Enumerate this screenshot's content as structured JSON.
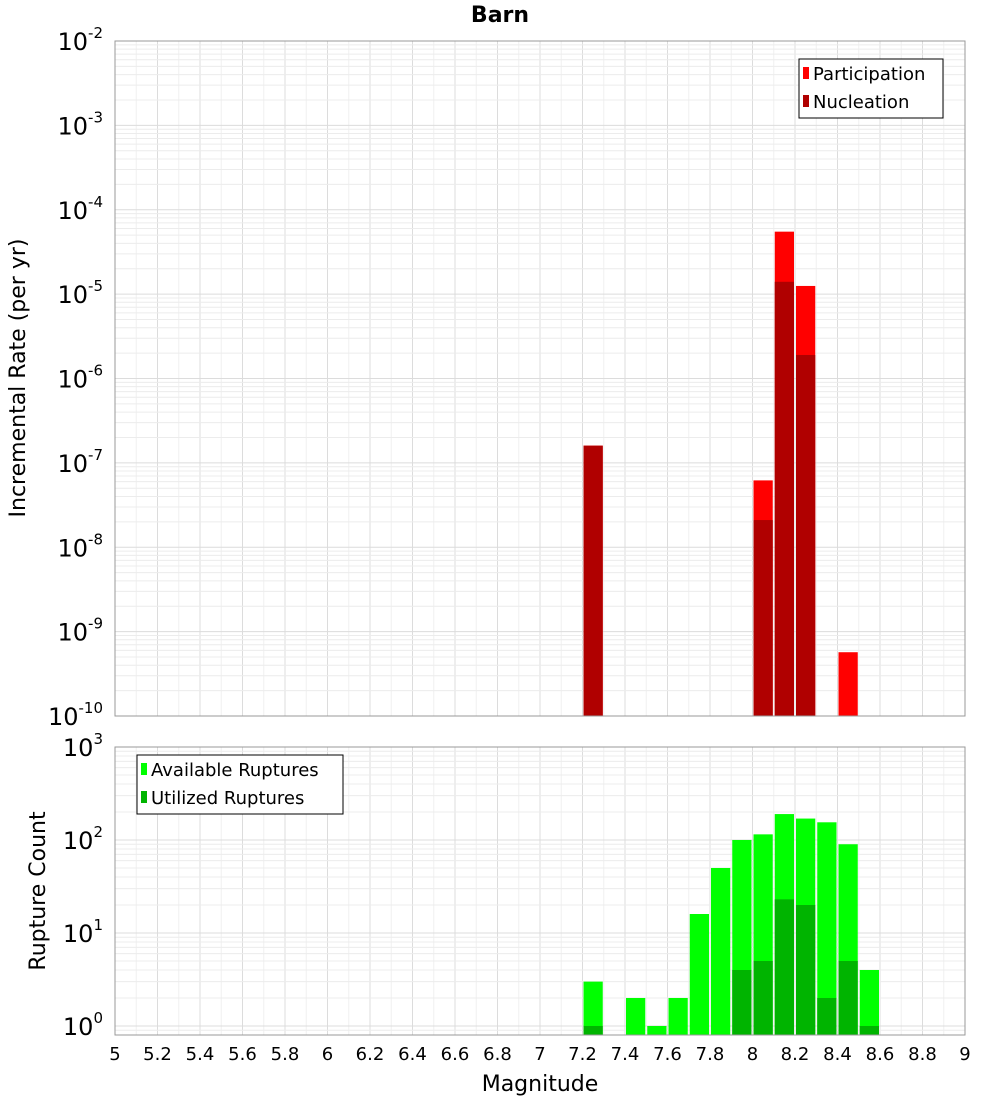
{
  "chart_data": [
    {
      "type": "bar",
      "title": "Barn",
      "ylabel": "Incremental Rate (per yr)",
      "yscale": "log",
      "ylim": [
        1e-10,
        0.01
      ],
      "xlim": [
        5,
        9
      ],
      "bin_width": 0.1,
      "grid": true,
      "legend_position": "top-right",
      "y_tick_labels": [
        {
          "base": "10",
          "exp": "-10"
        },
        {
          "base": "10",
          "exp": "-9"
        },
        {
          "base": "10",
          "exp": "-8"
        },
        {
          "base": "10",
          "exp": "-7"
        },
        {
          "base": "10",
          "exp": "-6"
        },
        {
          "base": "10",
          "exp": "-5"
        },
        {
          "base": "10",
          "exp": "-4"
        },
        {
          "base": "10",
          "exp": "-3"
        },
        {
          "base": "10",
          "exp": "-2"
        }
      ],
      "series": [
        {
          "name": "Participation",
          "color": "#ff0000",
          "points": [
            {
              "x": 7.25,
              "y": 1.6e-07
            },
            {
              "x": 8.05,
              "y": 6.2e-08
            },
            {
              "x": 8.15,
              "y": 5.5e-05
            },
            {
              "x": 8.25,
              "y": 1.25e-05
            },
            {
              "x": 8.45,
              "y": 5.7e-10
            }
          ]
        },
        {
          "name": "Nucleation",
          "color": "#b00000",
          "points": [
            {
              "x": 7.25,
              "y": 1.6e-07
            },
            {
              "x": 8.05,
              "y": 2.1e-08
            },
            {
              "x": 8.15,
              "y": 1.4e-05
            },
            {
              "x": 8.25,
              "y": 1.9e-06
            }
          ]
        }
      ]
    },
    {
      "type": "bar",
      "xlabel": "Magnitude",
      "ylabel": "Rupture Count",
      "yscale": "log",
      "ylim": [
        0.8,
        1000
      ],
      "xlim": [
        5,
        9
      ],
      "bin_width": 0.1,
      "grid": true,
      "legend_position": "top-left",
      "x_ticks": [
        "5",
        "5.2",
        "5.4",
        "5.6",
        "5.8",
        "6",
        "6.2",
        "6.4",
        "6.6",
        "6.8",
        "7",
        "7.2",
        "7.4",
        "7.6",
        "7.8",
        "8",
        "8.2",
        "8.4",
        "8.6",
        "8.8",
        "9"
      ],
      "y_tick_labels": [
        {
          "base": "10",
          "exp": "0"
        },
        {
          "base": "10",
          "exp": "1"
        },
        {
          "base": "10",
          "exp": "2"
        },
        {
          "base": "10",
          "exp": "3"
        }
      ],
      "series": [
        {
          "name": "Available Ruptures",
          "color": "#00ff00",
          "points": [
            {
              "x": 7.25,
              "y": 3
            },
            {
              "x": 7.45,
              "y": 2
            },
            {
              "x": 7.55,
              "y": 1
            },
            {
              "x": 7.65,
              "y": 2
            },
            {
              "x": 7.75,
              "y": 16
            },
            {
              "x": 7.85,
              "y": 50
            },
            {
              "x": 7.95,
              "y": 100
            },
            {
              "x": 8.05,
              "y": 115
            },
            {
              "x": 8.15,
              "y": 190
            },
            {
              "x": 8.25,
              "y": 170
            },
            {
              "x": 8.35,
              "y": 155
            },
            {
              "x": 8.45,
              "y": 90
            },
            {
              "x": 8.55,
              "y": 4
            }
          ]
        },
        {
          "name": "Utilized Ruptures",
          "color": "#00b400",
          "points": [
            {
              "x": 7.25,
              "y": 1
            },
            {
              "x": 7.95,
              "y": 4
            },
            {
              "x": 8.05,
              "y": 5
            },
            {
              "x": 8.15,
              "y": 23
            },
            {
              "x": 8.25,
              "y": 20
            },
            {
              "x": 8.35,
              "y": 2
            },
            {
              "x": 8.45,
              "y": 5
            },
            {
              "x": 8.55,
              "y": 1
            }
          ]
        }
      ]
    }
  ]
}
